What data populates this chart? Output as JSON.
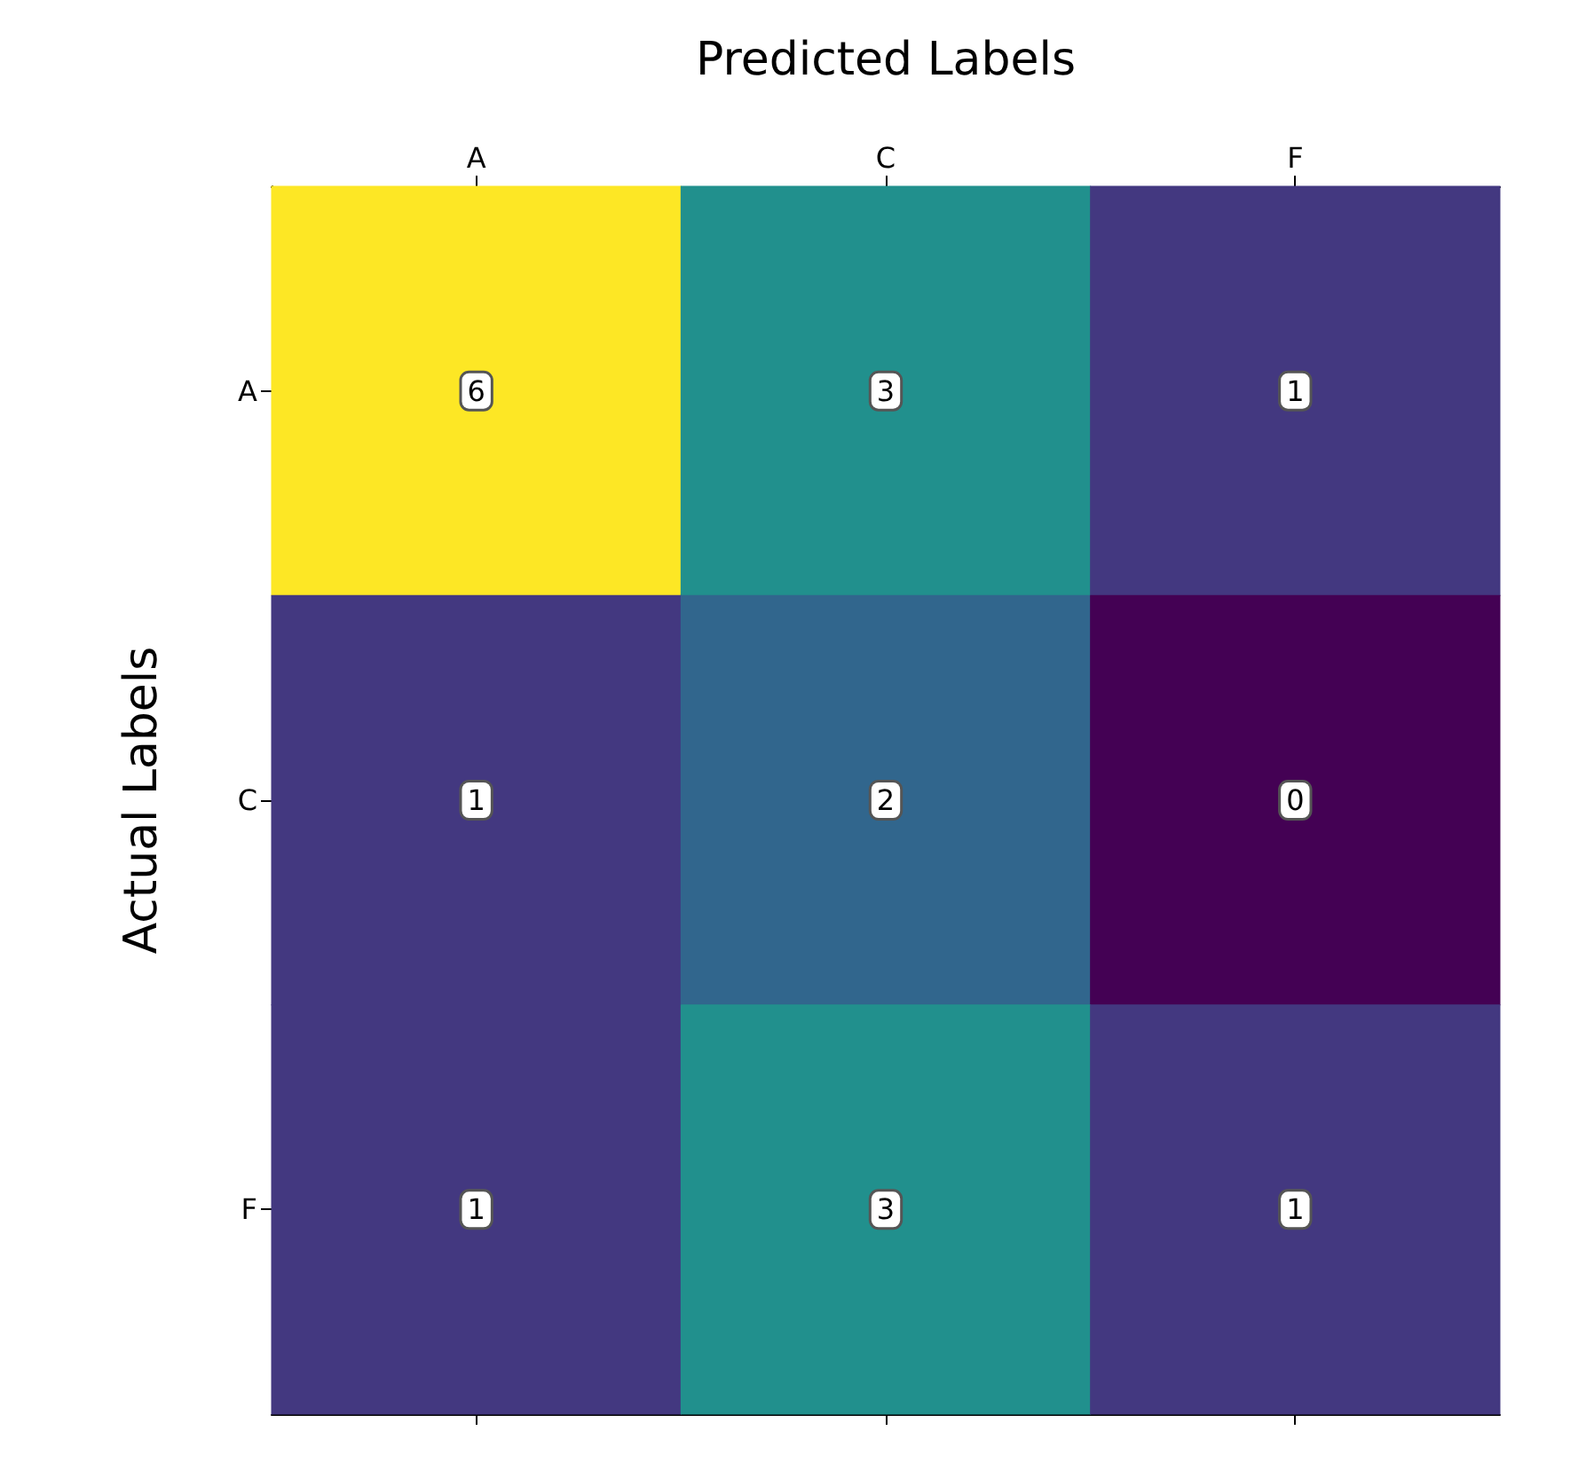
{
  "chart_data": {
    "type": "heatmap",
    "xlabel": "Predicted Labels",
    "ylabel": "Actual Labels",
    "categories": [
      "A",
      "C",
      "F"
    ],
    "y_categories": [
      "A",
      "C",
      "F"
    ],
    "cells": [
      [
        6,
        3,
        1
      ],
      [
        1,
        2,
        0
      ],
      [
        1,
        3,
        1
      ]
    ],
    "data_labels": true
  }
}
